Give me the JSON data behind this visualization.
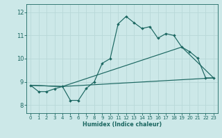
{
  "xlabel": "Humidex (Indice chaleur)",
  "bg_color": "#cce8e8",
  "grid_color": "#b8d8d8",
  "line_color": "#1a6660",
  "x_ticks": [
    0,
    1,
    2,
    3,
    4,
    5,
    6,
    7,
    8,
    9,
    10,
    11,
    12,
    13,
    14,
    15,
    16,
    17,
    18,
    19,
    20,
    21,
    22,
    23
  ],
  "y_ticks": [
    8,
    9,
    10,
    11,
    12
  ],
  "ylim": [
    7.65,
    12.35
  ],
  "xlim": [
    -0.5,
    23.5
  ],
  "curve1_x": [
    0,
    1,
    2,
    3,
    4,
    5,
    6,
    7,
    8,
    9,
    10,
    11,
    12,
    13,
    14,
    15,
    16,
    17,
    18,
    19,
    20,
    21,
    22,
    23
  ],
  "curve1_y": [
    8.85,
    8.58,
    8.58,
    8.7,
    8.8,
    8.2,
    8.2,
    8.72,
    9.0,
    9.8,
    10.0,
    11.5,
    11.82,
    11.55,
    11.3,
    11.38,
    10.88,
    11.08,
    11.0,
    10.5,
    10.3,
    10.02,
    9.17,
    9.17
  ],
  "curve2_x": [
    0,
    4,
    23
  ],
  "curve2_y": [
    8.85,
    8.8,
    9.17
  ],
  "curve3_x": [
    0,
    4,
    19,
    23
  ],
  "curve3_y": [
    8.85,
    8.8,
    10.5,
    9.17
  ]
}
